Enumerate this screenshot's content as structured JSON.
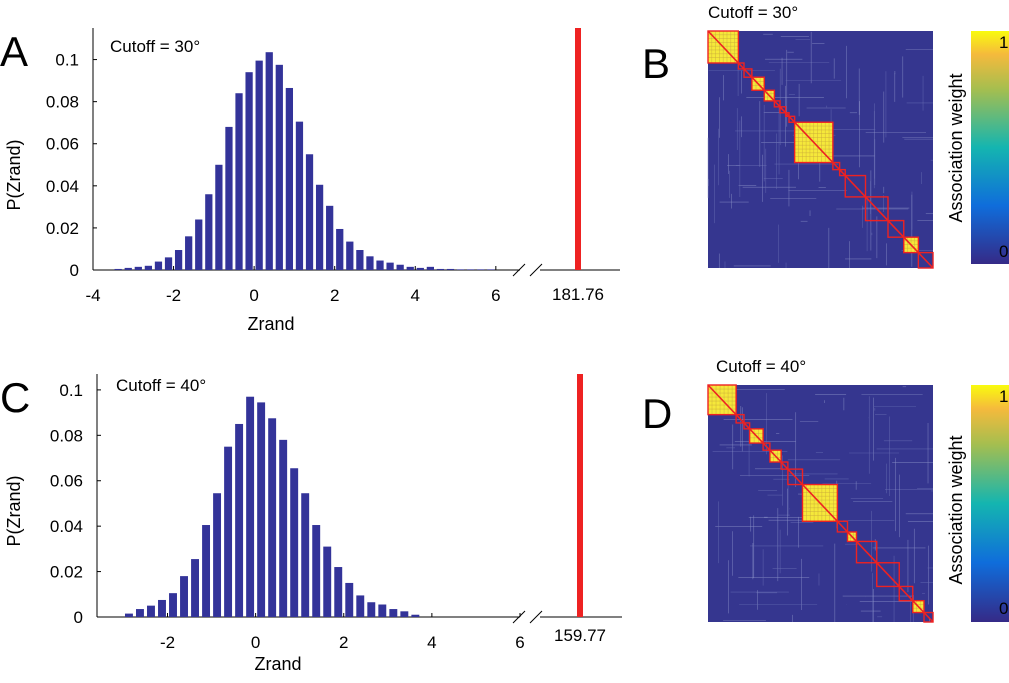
{
  "colors": {
    "bar": "#333399",
    "outlier": "#ee2222",
    "matrix_bg": "#35368f",
    "block": "#f5e83a",
    "module_outline": "#ee2222",
    "colorbar_low": "#352a87",
    "colorbar_mid": "#14b5b0",
    "colorbar_high": "#f9fb0e"
  },
  "chart_data": [
    {
      "panel": "A",
      "type": "bar",
      "title": "Cutoff = 30°",
      "xlabel": "Zrand",
      "ylabel": "P(Zrand)",
      "xlim": [
        -4,
        6.6
      ],
      "ylim": [
        0,
        0.115
      ],
      "xticks": [
        "-4",
        "-2",
        "0",
        "2",
        "4",
        "6"
      ],
      "xtick_values": [
        -4,
        -2,
        0,
        2,
        4,
        6
      ],
      "yticks": [
        "0",
        "0.02",
        "0.04",
        "0.06",
        "0.08",
        "0.1"
      ],
      "ytick_values": [
        0,
        0.02,
        0.04,
        0.06,
        0.08,
        0.1
      ],
      "bin_width": 0.25,
      "bin_centers": [
        -3.375,
        -3.125,
        -2.875,
        -2.625,
        -2.375,
        -2.125,
        -1.875,
        -1.625,
        -1.375,
        -1.125,
        -0.875,
        -0.625,
        -0.375,
        -0.125,
        0.125,
        0.375,
        0.625,
        0.875,
        1.125,
        1.375,
        1.625,
        1.875,
        2.125,
        2.375,
        2.625,
        2.875,
        3.125,
        3.375,
        3.625,
        3.875,
        4.125,
        4.375,
        4.625,
        4.875,
        5.125,
        5.375,
        5.625,
        5.875
      ],
      "values": [
        0.0005,
        0.001,
        0.0015,
        0.002,
        0.004,
        0.006,
        0.0095,
        0.016,
        0.024,
        0.036,
        0.05,
        0.068,
        0.084,
        0.094,
        0.0995,
        0.1035,
        0.0975,
        0.0865,
        0.0705,
        0.055,
        0.0405,
        0.0305,
        0.0195,
        0.0135,
        0.0095,
        0.0065,
        0.0045,
        0.0035,
        0.0025,
        0.0015,
        0.001,
        0.0015,
        0.0005,
        0.0005,
        0.0003,
        0.0003,
        0.0003,
        0.0003
      ],
      "outlier": {
        "label": "181.76",
        "value": 181.76,
        "bar_height": 0.115
      }
    },
    {
      "panel": "C",
      "type": "bar",
      "title": "Cutoff = 40°",
      "xlabel": "Zrand",
      "ylabel": "P(Zrand)",
      "xlim": [
        -3.6,
        6
      ],
      "ylim": [
        0,
        0.107
      ],
      "xticks": [
        "-2",
        "0",
        "2",
        "4",
        "6"
      ],
      "xtick_values": [
        -2,
        0,
        2,
        4,
        6
      ],
      "yticks": [
        "0",
        "0.02",
        "0.04",
        "0.06",
        "0.08",
        "0.1"
      ],
      "ytick_values": [
        0,
        0.02,
        0.04,
        0.06,
        0.08,
        0.1
      ],
      "bin_width": 0.25,
      "bin_centers": [
        -2.875,
        -2.625,
        -2.375,
        -2.125,
        -1.875,
        -1.625,
        -1.375,
        -1.125,
        -0.875,
        -0.625,
        -0.375,
        -0.125,
        0.125,
        0.375,
        0.625,
        0.875,
        1.125,
        1.375,
        1.625,
        1.875,
        2.125,
        2.375,
        2.625,
        2.875,
        3.125,
        3.375,
        3.625
      ],
      "values": [
        0.0015,
        0.0035,
        0.005,
        0.0075,
        0.0105,
        0.018,
        0.0255,
        0.0405,
        0.0545,
        0.075,
        0.085,
        0.097,
        0.0945,
        0.0875,
        0.078,
        0.0655,
        0.0545,
        0.0405,
        0.031,
        0.022,
        0.015,
        0.0095,
        0.0065,
        0.0055,
        0.0035,
        0.0025,
        0.001
      ],
      "outlier": {
        "label": "159.77",
        "value": 159.77,
        "bar_height": 0.107
      }
    },
    {
      "panel": "B",
      "type": "heatmap",
      "title": "Cutoff = 30°",
      "colorbar_label": "Association weight",
      "colorbar_ticks": [
        "0",
        "1"
      ],
      "colorbar_range": [
        0,
        1
      ],
      "modules": [
        {
          "start": 0.0,
          "end": 0.135,
          "filled": true
        },
        {
          "start": 0.135,
          "end": 0.16,
          "filled": false
        },
        {
          "start": 0.16,
          "end": 0.195,
          "filled": false
        },
        {
          "start": 0.195,
          "end": 0.25,
          "filled": true
        },
        {
          "start": 0.25,
          "end": 0.295,
          "filled": true
        },
        {
          "start": 0.295,
          "end": 0.32,
          "filled": false
        },
        {
          "start": 0.32,
          "end": 0.345,
          "filled": false
        },
        {
          "start": 0.345,
          "end": 0.36,
          "filled": false
        },
        {
          "start": 0.36,
          "end": 0.385,
          "filled": false
        },
        {
          "start": 0.385,
          "end": 0.555,
          "filled": true
        },
        {
          "start": 0.555,
          "end": 0.585,
          "filled": false
        },
        {
          "start": 0.585,
          "end": 0.61,
          "filled": false
        },
        {
          "start": 0.61,
          "end": 0.7,
          "filled": false
        },
        {
          "start": 0.7,
          "end": 0.8,
          "filled": false
        },
        {
          "start": 0.8,
          "end": 0.87,
          "filled": false
        },
        {
          "start": 0.87,
          "end": 0.935,
          "filled": true
        },
        {
          "start": 0.935,
          "end": 1.0,
          "filled": false
        }
      ]
    },
    {
      "panel": "D",
      "type": "heatmap",
      "title": "Cutoff = 40°",
      "colorbar_label": "Association weight",
      "colorbar_ticks": [
        "0",
        "1"
      ],
      "colorbar_range": [
        0,
        1
      ],
      "modules": [
        {
          "start": 0.0,
          "end": 0.125,
          "filled": true
        },
        {
          "start": 0.125,
          "end": 0.16,
          "filled": false
        },
        {
          "start": 0.16,
          "end": 0.185,
          "filled": false
        },
        {
          "start": 0.185,
          "end": 0.245,
          "filled": true
        },
        {
          "start": 0.245,
          "end": 0.275,
          "filled": false
        },
        {
          "start": 0.275,
          "end": 0.325,
          "filled": true
        },
        {
          "start": 0.325,
          "end": 0.355,
          "filled": false
        },
        {
          "start": 0.355,
          "end": 0.42,
          "filled": false
        },
        {
          "start": 0.42,
          "end": 0.575,
          "filled": true
        },
        {
          "start": 0.575,
          "end": 0.62,
          "filled": false
        },
        {
          "start": 0.62,
          "end": 0.66,
          "filled": true
        },
        {
          "start": 0.66,
          "end": 0.75,
          "filled": false
        },
        {
          "start": 0.75,
          "end": 0.85,
          "filled": false
        },
        {
          "start": 0.85,
          "end": 0.91,
          "filled": false
        },
        {
          "start": 0.91,
          "end": 0.96,
          "filled": true
        },
        {
          "start": 0.96,
          "end": 1.0,
          "filled": false
        }
      ]
    }
  ]
}
